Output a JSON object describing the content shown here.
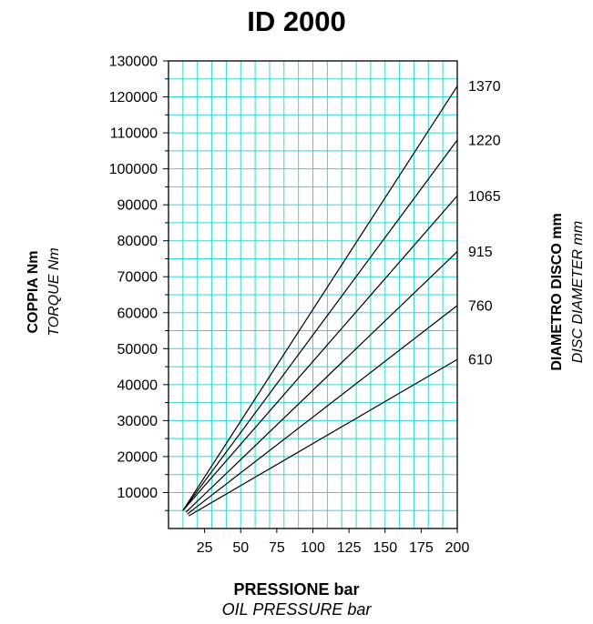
{
  "chart_data": {
    "type": "line",
    "title": "ID 2000",
    "xlabel": "PRESSIONE bar",
    "xlabel_en": "OIL PRESSURE bar",
    "ylabel": "COPPIA Nm",
    "ylabel_en": "TORQUE Nm",
    "y2label": "DIAMETRO DISCO mm",
    "y2label_en": "DISC DIAMETER mm",
    "xlim": [
      0,
      200
    ],
    "ylim": [
      0,
      130000
    ],
    "x_ticks": [
      "25",
      "50",
      "75",
      "100",
      "125",
      "150",
      "175",
      "200"
    ],
    "y_ticks": [
      "10000",
      "20000",
      "30000",
      "40000",
      "50000",
      "60000",
      "70000",
      "80000",
      "90000",
      "100000",
      "110000",
      "120000",
      "130000"
    ],
    "grid": true,
    "grid_color": "#33d6d6",
    "line_color": "#000000",
    "series": [
      {
        "name": "1370",
        "x": [
          10,
          200
        ],
        "y": [
          5000,
          123000
        ]
      },
      {
        "name": "1220",
        "x": [
          10,
          200
        ],
        "y": [
          5000,
          108000
        ]
      },
      {
        "name": "1065",
        "x": [
          10,
          200
        ],
        "y": [
          5000,
          92500
        ]
      },
      {
        "name": "915",
        "x": [
          12,
          200
        ],
        "y": [
          4500,
          77000
        ]
      },
      {
        "name": "760",
        "x": [
          13,
          200
        ],
        "y": [
          4000,
          62000
        ]
      },
      {
        "name": "610",
        "x": [
          14,
          200
        ],
        "y": [
          3500,
          47000
        ]
      }
    ]
  }
}
